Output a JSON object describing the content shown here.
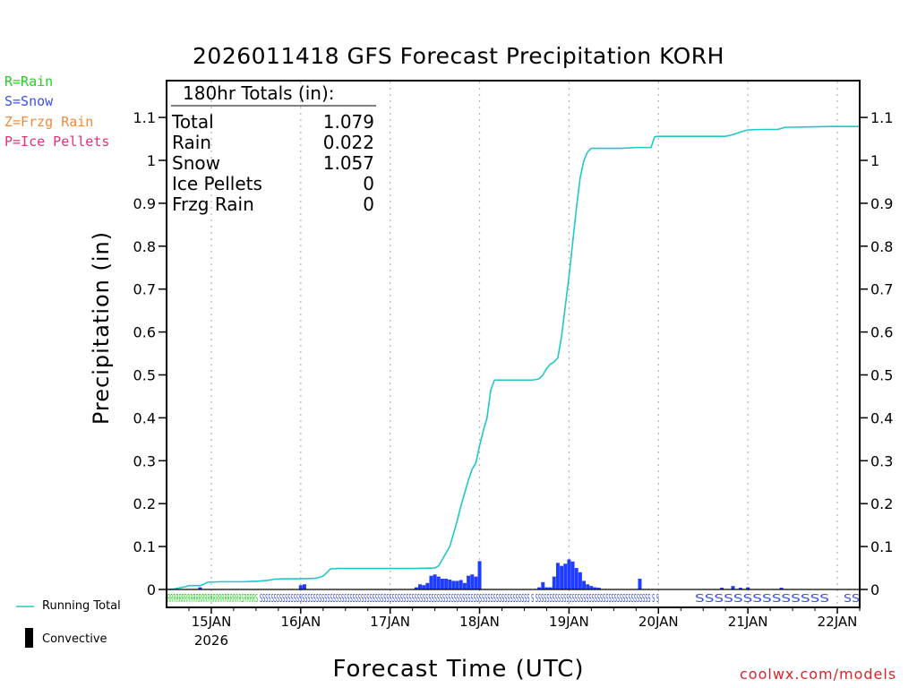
{
  "chart_data": {
    "type": "line",
    "title": "2026011418 GFS Forecast Precipitation KORH",
    "xlabel": "Forecast Time (UTC)",
    "ylabel": "Precipitation (in)",
    "ylim": [
      0,
      1.2
    ],
    "y_ticks": [
      0,
      0.1,
      0.2,
      0.3,
      0.4,
      0.5,
      0.6,
      0.7,
      0.8,
      0.9,
      1,
      1.1
    ],
    "y_tick_labels": [
      "0",
      "0.1",
      "0.2",
      "0.3",
      "0.4",
      "0.5",
      "0.6",
      "0.7",
      "0.8",
      "0.9",
      "1",
      "1.1"
    ],
    "x_range_hours": [
      -6,
      180
    ],
    "x_ticks": [
      {
        "label": "15JAN",
        "sublabel": "2026",
        "hour": 6
      },
      {
        "label": "16JAN",
        "hour": 30
      },
      {
        "label": "17JAN",
        "hour": 54
      },
      {
        "label": "18JAN",
        "hour": 78
      },
      {
        "label": "19JAN",
        "hour": 102
      },
      {
        "label": "20JAN",
        "hour": 126
      },
      {
        "label": "21JAN",
        "hour": 150
      },
      {
        "label": "22JAN",
        "hour": 174
      }
    ],
    "grid": "vertical dotted at day boundaries",
    "totals_box": {
      "heading": "180hr Totals (in):",
      "rows": [
        {
          "label": "Total",
          "value": "1.079"
        },
        {
          "label": "Rain",
          "value": "0.022"
        },
        {
          "label": "Snow",
          "value": "1.057"
        },
        {
          "label": "Ice Pellets",
          "value": "0"
        },
        {
          "label": "Frzg Rain",
          "value": "0"
        }
      ]
    },
    "series": [
      {
        "name": "Running Total",
        "type": "line",
        "color": "#1fc8c8",
        "x_hours": [
          -6,
          -4,
          -3,
          -1,
          0,
          2,
          3,
          4,
          5,
          9,
          11,
          12,
          14,
          15,
          17,
          18,
          21,
          23,
          26,
          30,
          34,
          36,
          38,
          40,
          46,
          52,
          60,
          66,
          67,
          68,
          69,
          70,
          71,
          72,
          73,
          74,
          75,
          76,
          77,
          78,
          79,
          80,
          81,
          82,
          83,
          84,
          85,
          86,
          87,
          88,
          89,
          90,
          91,
          92,
          93,
          94,
          95,
          96,
          97,
          98,
          99,
          100,
          101,
          102,
          103,
          104,
          105,
          106,
          107,
          108,
          109,
          110,
          112,
          116,
          120,
          124,
          125,
          126,
          130,
          135,
          140,
          144,
          146,
          148,
          150,
          154,
          158,
          160,
          166,
          172,
          180
        ],
        "values": [
          0,
          0.001,
          0.003,
          0.006,
          0.009,
          0.009,
          0.009,
          0.012,
          0.017,
          0.018,
          0.018,
          0.018,
          0.018,
          0.018,
          0.019,
          0.019,
          0.021,
          0.024,
          0.025,
          0.025,
          0.026,
          0.031,
          0.048,
          0.049,
          0.049,
          0.049,
          0.049,
          0.05,
          0.055,
          0.07,
          0.085,
          0.1,
          0.13,
          0.16,
          0.195,
          0.225,
          0.255,
          0.28,
          0.295,
          0.335,
          0.37,
          0.4,
          0.465,
          0.488,
          0.488,
          0.488,
          0.488,
          0.488,
          0.488,
          0.488,
          0.488,
          0.488,
          0.488,
          0.488,
          0.489,
          0.491,
          0.5,
          0.515,
          0.525,
          0.53,
          0.54,
          0.59,
          0.66,
          0.73,
          0.81,
          0.89,
          0.96,
          1.0,
          1.02,
          1.028,
          1.028,
          1.028,
          1.028,
          1.028,
          1.03,
          1.03,
          1.055,
          1.056,
          1.056,
          1.056,
          1.056,
          1.056,
          1.06,
          1.066,
          1.071,
          1.072,
          1.072,
          1.077,
          1.078,
          1.079,
          1.079
        ]
      },
      {
        "name": "Convective",
        "type": "bar",
        "color": "#1f3dff",
        "x_hours": [
          3,
          30,
          31,
          61,
          62,
          63,
          64,
          65,
          66,
          67,
          68,
          69,
          70,
          71,
          72,
          73,
          74,
          75,
          76,
          77,
          78,
          94,
          95,
          96,
          97,
          98,
          99,
          100,
          101,
          102,
          103,
          104,
          105,
          106,
          107,
          108,
          109,
          110,
          121,
          143,
          146,
          148,
          150,
          159
        ],
        "values": [
          0.005,
          0.01,
          0.012,
          0.005,
          0.012,
          0.01,
          0.015,
          0.032,
          0.035,
          0.03,
          0.025,
          0.025,
          0.023,
          0.02,
          0.02,
          0.022,
          0.015,
          0.032,
          0.035,
          0.03,
          0.066,
          0.005,
          0.017,
          0.005,
          0.005,
          0.03,
          0.062,
          0.055,
          0.06,
          0.07,
          0.065,
          0.05,
          0.04,
          0.02,
          0.012,
          0.008,
          0.005,
          0.004,
          0.025,
          0.004,
          0.008,
          0.004,
          0.005,
          0.004
        ]
      }
    ],
    "ptype_strip": {
      "rain_text": "RRRRRRRRRRRRRRRRRRRRRRRRRRSRRRRS",
      "snow_text": "SSSSSSSSSSSSSSSSSSSSSSSSSSSSSSSSSSSSSSSSSSSSSSSSSSSSSSSSSSSSSSSSSSSSSSSSSSSSSSSSSSSSSSSSSSSSSSSS S SSSSSSSSSSSSSSSSSSSSSSSSSSSSSSSSSSSSSSSSS S S",
      "snow_text_late": "SSSSSSSSSSSSSS",
      "snow_text_end": "SS"
    }
  },
  "ptype_legend": [
    {
      "text": "R=Rain",
      "color": "#22d022"
    },
    {
      "text": "S=Snow",
      "color": "#3a52e6"
    },
    {
      "text": "Z=Frzg Rain",
      "color": "#f08a3a"
    },
    {
      "text": "P=Ice Pellets",
      "color": "#e0307a"
    }
  ],
  "legend": {
    "running_total": "Running Total",
    "convective": "Convective"
  },
  "credit": "coolwx.com/models",
  "colors": {
    "line": "#1fc8c8",
    "bar": "#1f3dff",
    "rain": "#22d022",
    "snow": "#3a52e6",
    "credit": "#d8242b"
  }
}
